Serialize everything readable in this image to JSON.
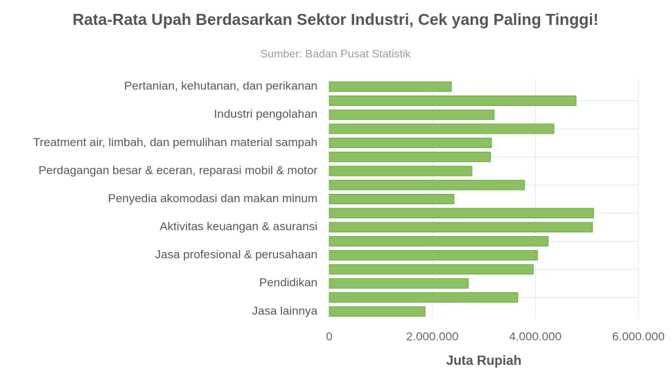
{
  "chart_data": {
    "type": "hbar",
    "title": "Rata-Rata Upah Berdasarkan Sektor Industri, Cek yang Paling Tinggi!",
    "subtitle": "Sumber: Badan Pusat Statistik",
    "x_label": "Juta Rupiah",
    "categories": [
      "Pertanian, kehutanan, dan perikanan",
      null,
      "Industri pengolahan",
      null,
      "Treatment air, limbah, dan pemulihan material sampah",
      null,
      "Perdagangan besar & eceran, reparasi mobil & motor",
      null,
      "Penyedia akomodasi dan makan minum",
      null,
      "Aktivitas keuangan & asuransi",
      null,
      "Jasa profesional & perusahaan",
      null,
      "Pendidikan",
      null,
      "Jasa lainnya"
    ],
    "values": [
      2370000,
      4790000,
      3200000,
      4360000,
      3150000,
      3130000,
      2770000,
      3790000,
      2420000,
      5130000,
      5110000,
      4250000,
      4040000,
      3960000,
      2700000,
      3660000,
      1860000
    ],
    "color": "#8cc063",
    "xlim": [
      0,
      6000000
    ],
    "xticks": [
      0,
      {
        "value": 2000000,
        "label": "2.000.000"
      },
      {
        "value": 4000000,
        "label": "4.000.000"
      },
      {
        "value": 6000000,
        "label": "6.000.000"
      }
    ],
    "grid": true
  }
}
